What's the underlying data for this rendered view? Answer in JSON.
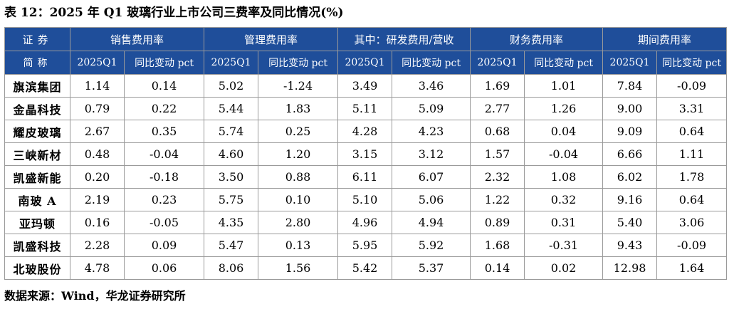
{
  "title": "表 12：2025 年 Q1 玻璃行业上市公司三费率及同比情况(%)",
  "header": {
    "stub_top": "证券",
    "stub_bottom": "简称",
    "groups": [
      "销售费用率",
      "管理费用率",
      "其中：研发费用/营收",
      "财务费用率",
      "期间费用率"
    ],
    "sub": [
      "2025Q1",
      "同比变动 pct"
    ]
  },
  "rows": [
    {
      "name": "旗滨集团",
      "v": [
        "1.14",
        "0.14",
        "5.02",
        "-1.24",
        "3.49",
        "3.46",
        "1.69",
        "1.01",
        "7.84",
        "-0.09"
      ]
    },
    {
      "name": "金晶科技",
      "v": [
        "0.79",
        "0.22",
        "5.44",
        "1.83",
        "5.11",
        "5.09",
        "2.77",
        "1.26",
        "9.00",
        "3.31"
      ]
    },
    {
      "name": "耀皮玻璃",
      "v": [
        "2.67",
        "0.35",
        "5.74",
        "0.25",
        "4.28",
        "4.23",
        "0.68",
        "0.04",
        "9.09",
        "0.64"
      ]
    },
    {
      "name": "三峡新材",
      "v": [
        "0.48",
        "-0.04",
        "4.60",
        "1.20",
        "3.15",
        "3.12",
        "1.57",
        "-0.04",
        "6.66",
        "1.11"
      ]
    },
    {
      "name": "凯盛新能",
      "v": [
        "0.20",
        "-0.18",
        "3.50",
        "0.88",
        "6.11",
        "6.07",
        "2.32",
        "1.08",
        "6.02",
        "1.78"
      ]
    },
    {
      "name": "南玻 A",
      "v": [
        "2.19",
        "0.23",
        "5.75",
        "0.10",
        "5.10",
        "5.06",
        "1.22",
        "0.32",
        "9.16",
        "0.64"
      ]
    },
    {
      "name": "亚玛顿",
      "v": [
        "0.16",
        "-0.05",
        "4.35",
        "2.80",
        "4.96",
        "4.94",
        "0.89",
        "0.31",
        "5.40",
        "3.06"
      ]
    },
    {
      "name": "凯盛科技",
      "v": [
        "2.28",
        "0.09",
        "5.47",
        "0.13",
        "5.95",
        "5.92",
        "1.68",
        "-0.31",
        "9.43",
        "-0.09"
      ]
    },
    {
      "name": "北玻股份",
      "v": [
        "4.78",
        "0.06",
        "8.06",
        "1.56",
        "5.42",
        "5.37",
        "0.14",
        "0.02",
        "12.98",
        "1.64"
      ]
    }
  ],
  "source": "数据来源：Wind，华龙证券研究所"
}
